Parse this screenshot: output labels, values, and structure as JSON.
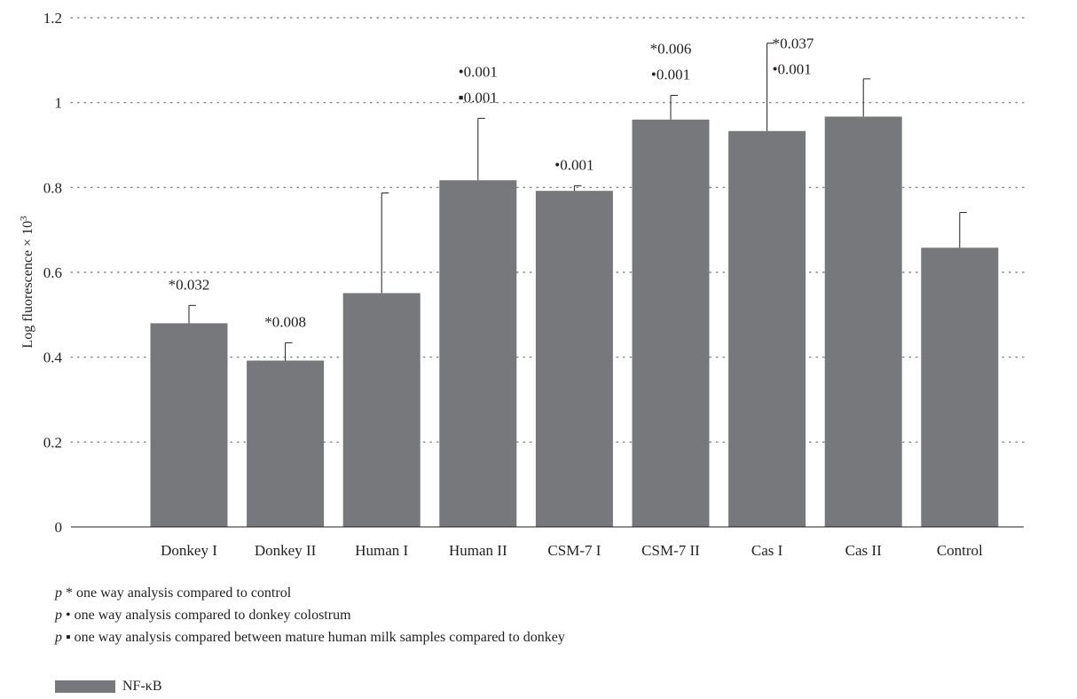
{
  "chart_data": {
    "type": "bar",
    "categories": [
      "Donkey I",
      "Donkey II",
      "Human I",
      "Human II",
      "CSM-7 I",
      "CSM-7 II",
      "Cas I",
      "Cas II",
      "Control"
    ],
    "series": [
      {
        "name": "NF-κB",
        "values": [
          0.48,
          0.392,
          0.551,
          0.817,
          0.792,
          0.96,
          0.933,
          0.967,
          0.658
        ],
        "error_upper": [
          0.522,
          0.434,
          0.787,
          0.963,
          0.804,
          1.017,
          1.14,
          1.056,
          0.741
        ]
      }
    ],
    "annotations": [
      [
        "*0.032"
      ],
      [
        "*0.008"
      ],
      [],
      [
        "•0.001",
        "▪0.001"
      ],
      [
        "•0.001"
      ],
      [
        "*0.006",
        "•0.001"
      ],
      [
        "*0.037",
        "•0.001"
      ],
      [],
      []
    ],
    "yticks": [
      "0",
      "0.2",
      "0.4",
      "0.6",
      "0.8",
      "1",
      "1.2"
    ],
    "ytick_values": [
      0,
      0.2,
      0.4,
      0.6,
      0.8,
      1,
      1.2
    ],
    "ylim": [
      0,
      1.2
    ],
    "ylabel": "Log fluorescence × 10",
    "ylabel_sup": "3",
    "xlabel": "",
    "title": "",
    "grid": "horizontal dotted",
    "legend_position": "bottom-left",
    "bar_color": "#77787b"
  },
  "notes": [
    {
      "p": "p",
      "text": "* one way analysis compared to control"
    },
    {
      "p": "p",
      "text": "• one way analysis compared to donkey colostrum"
    },
    {
      "p": "p",
      "text": "▪ one way analysis compared between mature human milk samples compared to donkey"
    }
  ],
  "legend": {
    "label": "NF-κB"
  }
}
